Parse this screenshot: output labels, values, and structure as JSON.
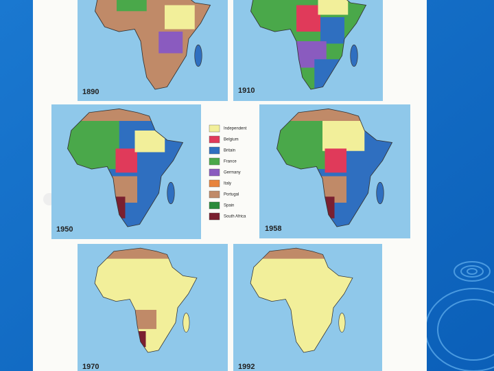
{
  "panels": [
    {
      "year": "1890"
    },
    {
      "year": "1910"
    },
    {
      "year": "1950"
    },
    {
      "year": "1958"
    },
    {
      "year": "1970"
    },
    {
      "year": "1992"
    }
  ],
  "legend": [
    {
      "label": "Independent",
      "color": "#f2ef9a"
    },
    {
      "label": "Belgium",
      "color": "#e03a5a"
    },
    {
      "label": "Britain",
      "color": "#2f6fc0"
    },
    {
      "label": "France",
      "color": "#4aa84a"
    },
    {
      "label": "Germany",
      "color": "#8a5bbf"
    },
    {
      "label": "Italy",
      "color": "#e8843c"
    },
    {
      "label": "Portugal",
      "color": "#c08a68"
    },
    {
      "label": "Spain",
      "color": "#2a8a3a"
    },
    {
      "label": "South Africa",
      "color": "#7a2030"
    }
  ]
}
